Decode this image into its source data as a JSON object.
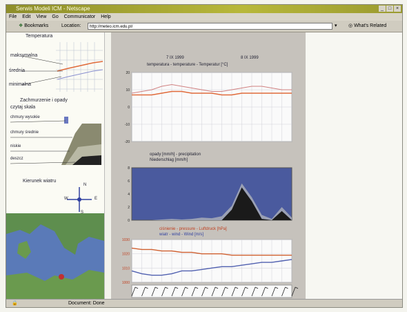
{
  "window": {
    "title": "Serwis Modeli ICM - Netscape"
  },
  "menu": [
    "File",
    "Edit",
    "View",
    "Go",
    "Communicator",
    "Help"
  ],
  "toolbar": {
    "bookmarks_label": "Bookmarks",
    "location_label": "Location:",
    "url": "http://meteo.icm.edu.pl/",
    "related_label": "What's Related"
  },
  "sidebar": {
    "temperature_heading": "Temperatura",
    "max_label": "maksymalna",
    "mean_label": "średnia",
    "min_label": "minimalna",
    "cloud_heading_1": "Zachmurzenie i opady",
    "cloud_heading_2": "czytaj skala",
    "upper_clouds": "chmury wysokie",
    "middle_clouds": "chmury średnie",
    "low_clouds": "niskie",
    "rain": "deszcz",
    "wind_heading": "Kierunek wiatru",
    "compass_n": "N",
    "compass_s": "S",
    "compass_w": "W",
    "compass_e": "E"
  },
  "main": {
    "date_left": "7 IX 1999",
    "date_right": "8 IX 1999",
    "chart1_title": "temperatura - temperature - Temperatur [°C]",
    "chart2_title_1": "opady [mm/h] - precipitation",
    "chart2_title_2": "Niederschlag [mm/h]",
    "chart3_title_1": "ciśnienie - pressure - Luftdruck [hPa]",
    "chart3_title_2": "wiatr - wind - Wind [m/s]"
  },
  "status": {
    "text": "Document: Done"
  },
  "colors": {
    "temp_max": "#e06a3a",
    "temp_mean": "#d08080",
    "precip_bg": "#4a5a9e",
    "pressure": "#d06030",
    "wind": "#5060b0"
  },
  "chart_data": [
    {
      "type": "line",
      "title": "temperatura - temperature - Temperatur [°C]",
      "x": [
        0,
        3,
        6,
        9,
        12,
        15,
        18,
        21,
        24,
        27,
        30,
        33,
        36,
        39,
        42,
        45,
        48
      ],
      "series": [
        {
          "name": "",
          "values": [
            8,
            9,
            10,
            12,
            13,
            12,
            11,
            10,
            9,
            9,
            10,
            11,
            12,
            12,
            11,
            10,
            10
          ]
        },
        {
          "name": "",
          "values": [
            7,
            7,
            7,
            8,
            9,
            9,
            8,
            8,
            8,
            7,
            7,
            8,
            8,
            8,
            8,
            8,
            8
          ]
        }
      ],
      "ylim": [
        -20,
        20
      ]
    },
    {
      "type": "area",
      "title": "opady [mm/h] - precipitation",
      "x": [
        0,
        3,
        6,
        9,
        12,
        15,
        18,
        21,
        24,
        27,
        30,
        33,
        36,
        39,
        42,
        45,
        48
      ],
      "values": [
        0,
        0,
        0,
        0.1,
        0.2,
        0.1,
        0.2,
        0.4,
        0.3,
        0.6,
        2.2,
        5.6,
        3.5,
        0.8,
        0.2,
        2.0,
        0.4
      ],
      "ylim": [
        0,
        8
      ]
    },
    {
      "type": "line",
      "title": "ciśnienie - pressure - Luftdruck [hPa]",
      "x": [
        0,
        3,
        6,
        9,
        12,
        15,
        18,
        21,
        24,
        27,
        30,
        33,
        36,
        39,
        42,
        45,
        48
      ],
      "series": [
        {
          "name": "",
          "values": [
            1024,
            1023,
            1023,
            1022,
            1022,
            1021,
            1021,
            1020,
            1020,
            1020,
            1019,
            1019,
            1019,
            1019,
            1019,
            1019,
            1019
          ]
        },
        {
          "name": "",
          "values": [
            1008,
            1006,
            1005,
            1005,
            1006,
            1008,
            1008,
            1009,
            1010,
            1011,
            1011,
            1012,
            1013,
            1014,
            1014,
            1015,
            1016
          ]
        }
      ],
      "ylim": [
        1000,
        1030
      ]
    }
  ]
}
